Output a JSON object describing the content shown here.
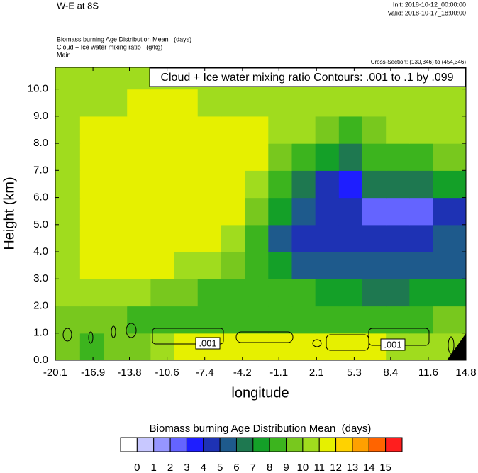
{
  "chart_data": {
    "type": "contour",
    "title": "W-E at 8S",
    "init": "Init: 2018-10-12_00:00:00",
    "valid": "Valid: 2018-10-17_18:00:00",
    "subtitles": [
      "Biomass burning Age Distribution Mean   (days)",
      "Cloud + Ice water mixing ratio   (g/kg)",
      "Main"
    ],
    "cross_section": "Cross-Section: (130,346) to (454,346)",
    "annotation": "Cloud + Ice water mixing ratio Contours: .001 to .1 by .099",
    "contour_labels": [
      ".001",
      ".001"
    ],
    "x_label": "longitude",
    "y_label": "Height (km)",
    "xlim": [
      -20.1,
      14.8
    ],
    "ylim": [
      0,
      10.8
    ],
    "xticks": [
      -20.1,
      -16.9,
      -13.8,
      -10.6,
      -7.4,
      -4.2,
      -1.1,
      2.1,
      5.3,
      8.4,
      11.6,
      14.8
    ],
    "yticks": [
      {
        "value": 0,
        "label": "0.0"
      },
      {
        "value": 1,
        "label": "1.0"
      },
      {
        "value": 2,
        "label": "2.0"
      },
      {
        "value": 3,
        "label": "3.0"
      },
      {
        "value": 4,
        "label": "4.0"
      },
      {
        "value": 5,
        "label": "5.0"
      },
      {
        "value": 6,
        "label": "6.0"
      },
      {
        "value": 7,
        "label": "7.0"
      },
      {
        "value": 8,
        "label": "8.0"
      },
      {
        "value": 9,
        "label": "9.0"
      },
      {
        "value": 10,
        "label": "10.0"
      }
    ],
    "x": [
      -19,
      -17,
      -15,
      -13,
      -11,
      -9,
      -7,
      -5,
      -3,
      -1,
      1,
      3,
      5,
      7,
      9,
      11,
      13
    ],
    "y": [
      0.5,
      1.5,
      2.5,
      3.5,
      4.5,
      5.5,
      6.5,
      7.5,
      8.5,
      9.5,
      10.5
    ],
    "z": [
      [
        9.5,
        8.5,
        9.5,
        9.5,
        10.5,
        11.5,
        11.5,
        11.5,
        11.5,
        11.5,
        11.5,
        11.5,
        11.5,
        11.5,
        10.5,
        10.5,
        10.5
      ],
      [
        9.5,
        9.5,
        9.5,
        8.5,
        8.5,
        8.5,
        8.5,
        8.5,
        8.5,
        8.5,
        8.5,
        8.5,
        8.5,
        8.5,
        8.5,
        8.5,
        9.5
      ],
      [
        10.5,
        10.5,
        10.5,
        10.5,
        9.5,
        9.5,
        8.5,
        8.5,
        8.5,
        8.5,
        8.5,
        7.5,
        7.5,
        6.5,
        6.5,
        7.5,
        7.5
      ],
      [
        10.5,
        11.5,
        11.5,
        11.5,
        11.5,
        10.5,
        10.5,
        9.5,
        8.5,
        7.5,
        5.5,
        5.5,
        5.5,
        5.5,
        5.5,
        5.5,
        5.5
      ],
      [
        10.5,
        11.5,
        11.5,
        11.5,
        11.5,
        11.5,
        11.5,
        10.5,
        8.5,
        5.5,
        4.5,
        4.5,
        4.5,
        4.5,
        4.5,
        4.5,
        5.5
      ],
      [
        10.5,
        11.5,
        11.5,
        11.5,
        11.5,
        11.5,
        11.5,
        11.5,
        9.5,
        7.5,
        5.5,
        4.5,
        4.5,
        2.5,
        2.5,
        2.5,
        4.5
      ],
      [
        10.5,
        11.5,
        11.5,
        11.5,
        11.5,
        11.5,
        11.5,
        11.5,
        10.5,
        8.5,
        6.5,
        4.5,
        3.5,
        6.5,
        6.5,
        6.5,
        7.5
      ],
      [
        10.5,
        11.5,
        11.5,
        11.5,
        11.5,
        11.5,
        11.5,
        11.5,
        11.5,
        9.5,
        8.5,
        7.5,
        6.5,
        8.5,
        8.5,
        8.5,
        9.5
      ],
      [
        10.5,
        11.5,
        11.5,
        11.5,
        11.5,
        11.5,
        11.5,
        11.5,
        11.5,
        10.5,
        10.5,
        9.5,
        8.5,
        9.5,
        10.5,
        10.5,
        10.5
      ],
      [
        10.5,
        10.5,
        10.5,
        11.5,
        11.5,
        11.5,
        10.5,
        10.5,
        10.5,
        10.5,
        10.5,
        10.5,
        10.5,
        10.5,
        10.5,
        10.5,
        10.5
      ],
      [
        10.5,
        10.5,
        10.5,
        10.5,
        10.5,
        10.5,
        10.5,
        10.5,
        10.5,
        10.5,
        10.5,
        10.5,
        10.5,
        10.5,
        10.5,
        10.5,
        10.5
      ]
    ],
    "colorbar_title": "Biomass burning Age Distribution Mean  (days)",
    "levels": [
      0,
      1,
      2,
      3,
      4,
      5,
      6,
      7,
      8,
      9,
      10,
      11,
      12,
      13,
      14,
      15
    ],
    "colors": [
      "#ffffff",
      "#c8c8ff",
      "#9696ff",
      "#6464ff",
      "#1e1eff",
      "#1e32b4",
      "#1e5a8c",
      "#1e7850",
      "#14a028",
      "#3cb41e",
      "#78c81e",
      "#a0dc1e",
      "#e6f000",
      "#ffd200",
      "#ffa000",
      "#ff6400",
      "#ff1e1e"
    ]
  }
}
